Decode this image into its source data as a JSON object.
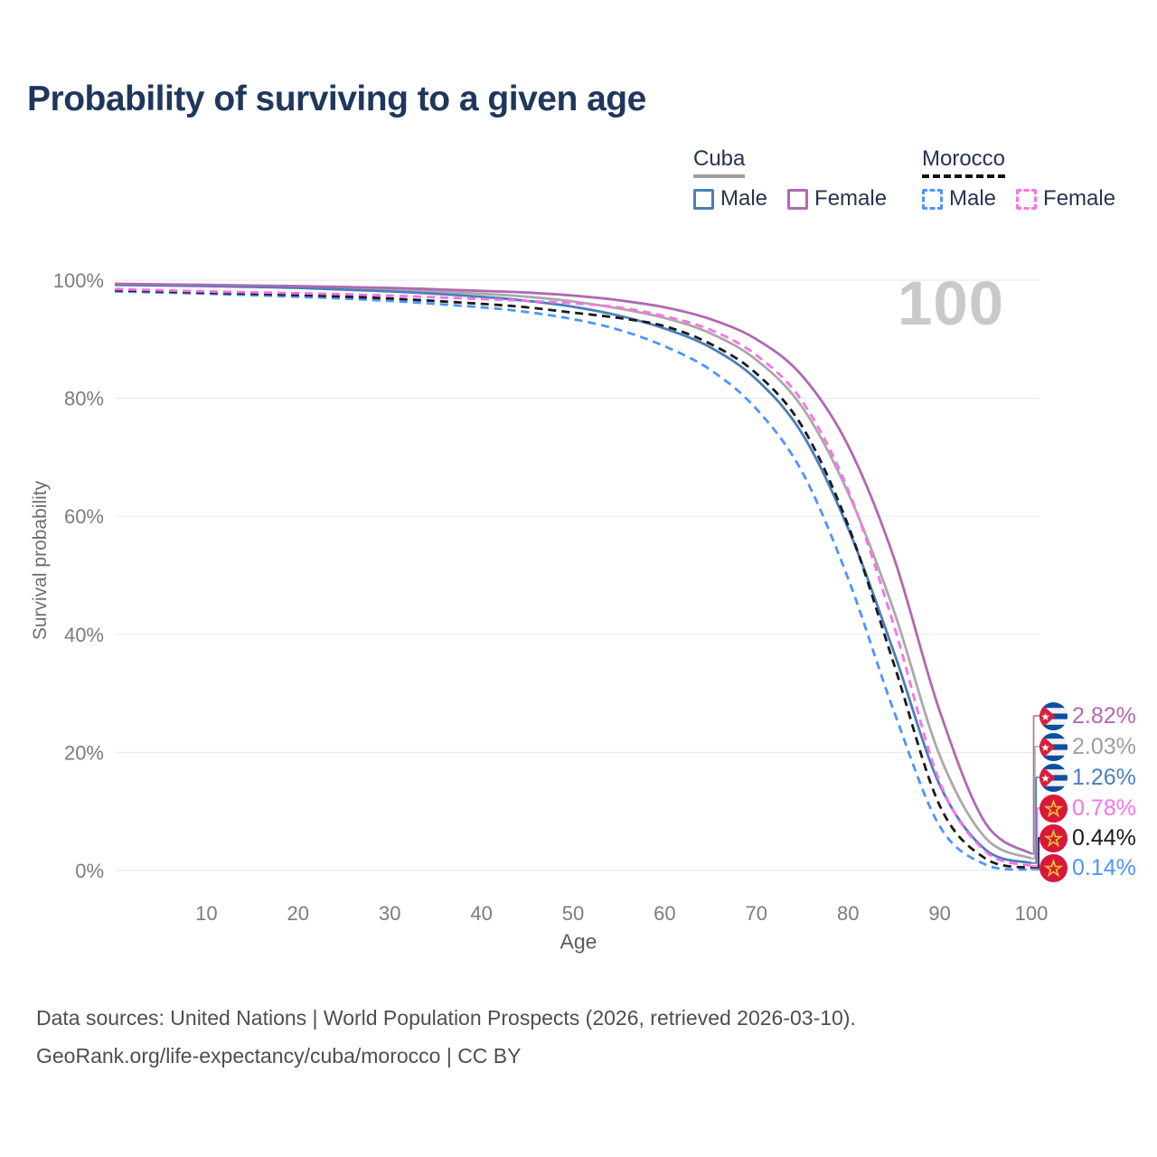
{
  "title": "Probability of surviving to a given age",
  "watermark": "100",
  "legend": {
    "groups": [
      {
        "label": "Cuba",
        "style": "solid",
        "underline_color": "#9e9e9e",
        "items": [
          {
            "label": "Male",
            "color": "#4a7eba"
          },
          {
            "label": "Female",
            "color": "#b168b1"
          }
        ]
      },
      {
        "label": "Morocco",
        "style": "dashed",
        "underline_color": "#111111",
        "items": [
          {
            "label": "Male",
            "color": "#4d94ff"
          },
          {
            "label": "Female",
            "color": "#ff70e8"
          }
        ]
      }
    ]
  },
  "chart_data": {
    "type": "line",
    "title": "Probability of surviving to a given age",
    "xlabel": "Age",
    "ylabel": "Survival probability",
    "xlim": [
      0,
      100
    ],
    "ylim": [
      0,
      100
    ],
    "grid": "horizontal",
    "legend_position": "top-right",
    "x_ticks": [
      10,
      20,
      30,
      40,
      50,
      60,
      70,
      80,
      90,
      100
    ],
    "y_ticks": [
      {
        "value": 0,
        "label": "0%"
      },
      {
        "value": 20,
        "label": "20%"
      },
      {
        "value": 40,
        "label": "40%"
      },
      {
        "value": 60,
        "label": "60%"
      },
      {
        "value": 80,
        "label": "80%"
      },
      {
        "value": 100,
        "label": "100%"
      }
    ],
    "ages": [
      0,
      10,
      20,
      30,
      40,
      45,
      50,
      55,
      60,
      65,
      70,
      75,
      80,
      85,
      90,
      95,
      100
    ],
    "series": [
      {
        "name": "Cuba Female",
        "country": "Cuba",
        "sex": "Female",
        "color": "#b168b1",
        "dashed": false,
        "end_label": "2.82%",
        "values": [
          99.4,
          99.2,
          99.0,
          98.7,
          98.2,
          97.9,
          97.4,
          96.6,
          95.4,
          93.4,
          90.0,
          83.8,
          72.0,
          53.0,
          27.0,
          8.0,
          2.82
        ]
      },
      {
        "name": "Cuba Both sexes",
        "country": "Cuba",
        "sex": "Both",
        "color": "#a9a9a9",
        "dashed": false,
        "end_label": "2.03%",
        "values": [
          99.3,
          99.1,
          98.8,
          98.4,
          97.7,
          97.2,
          96.4,
          95.2,
          93.6,
          91.0,
          86.5,
          78.5,
          64.0,
          44.0,
          19.5,
          5.5,
          2.03
        ]
      },
      {
        "name": "Cuba Male",
        "country": "Cuba",
        "sex": "Male",
        "color": "#4a7eba",
        "dashed": false,
        "end_label": "1.26%",
        "values": [
          99.2,
          99.0,
          98.7,
          98.1,
          97.2,
          96.5,
          95.5,
          94.0,
          91.8,
          88.6,
          83.2,
          74.0,
          58.0,
          37.0,
          14.5,
          3.5,
          1.26
        ]
      },
      {
        "name": "Morocco Female",
        "country": "Morocco",
        "sex": "Female",
        "color": "#ff70e8",
        "dashed": true,
        "end_label": "0.78%",
        "values": [
          98.5,
          98.1,
          97.8,
          97.4,
          96.8,
          96.5,
          96.1,
          95.4,
          93.9,
          91.6,
          87.3,
          79.5,
          64.5,
          41.5,
          15.0,
          3.2,
          0.78
        ]
      },
      {
        "name": "Morocco Both sexes",
        "country": "Morocco",
        "sex": "Both",
        "color": "#1a1a1a",
        "dashed": true,
        "end_label": "0.44%",
        "values": [
          98.3,
          97.9,
          97.5,
          96.9,
          96.0,
          95.4,
          94.5,
          93.6,
          92.2,
          89.2,
          84.2,
          75.2,
          58.5,
          35.0,
          11.0,
          2.0,
          0.44
        ]
      },
      {
        "name": "Morocco Male",
        "country": "Morocco",
        "sex": "Male",
        "color": "#4d94ff",
        "dashed": true,
        "end_label": "0.14%",
        "values": [
          98.1,
          97.7,
          97.2,
          96.5,
          95.4,
          94.6,
          93.4,
          91.6,
          88.8,
          84.8,
          78.2,
          67.5,
          49.5,
          27.0,
          7.5,
          1.0,
          0.14
        ]
      }
    ]
  },
  "end_labels": [
    {
      "value": "2.82%",
      "color": "#b168b1",
      "flag": "Cuba"
    },
    {
      "value": "2.03%",
      "color": "#9e9e9e",
      "flag": "Cuba"
    },
    {
      "value": "1.26%",
      "color": "#4a7eba",
      "flag": "Cuba"
    },
    {
      "value": "0.78%",
      "color": "#ff70e8",
      "flag": "Morocco"
    },
    {
      "value": "0.44%",
      "color": "#1a1a1a",
      "flag": "Morocco"
    },
    {
      "value": "0.14%",
      "color": "#4d94ff",
      "flag": "Morocco"
    }
  ],
  "footer": {
    "line1": "Data sources: United Nations | World Population Prospects (2026, retrieved 2026-03-10).",
    "line2": "GeoRank.org/life-expectancy/cuba/morocco | CC BY"
  }
}
